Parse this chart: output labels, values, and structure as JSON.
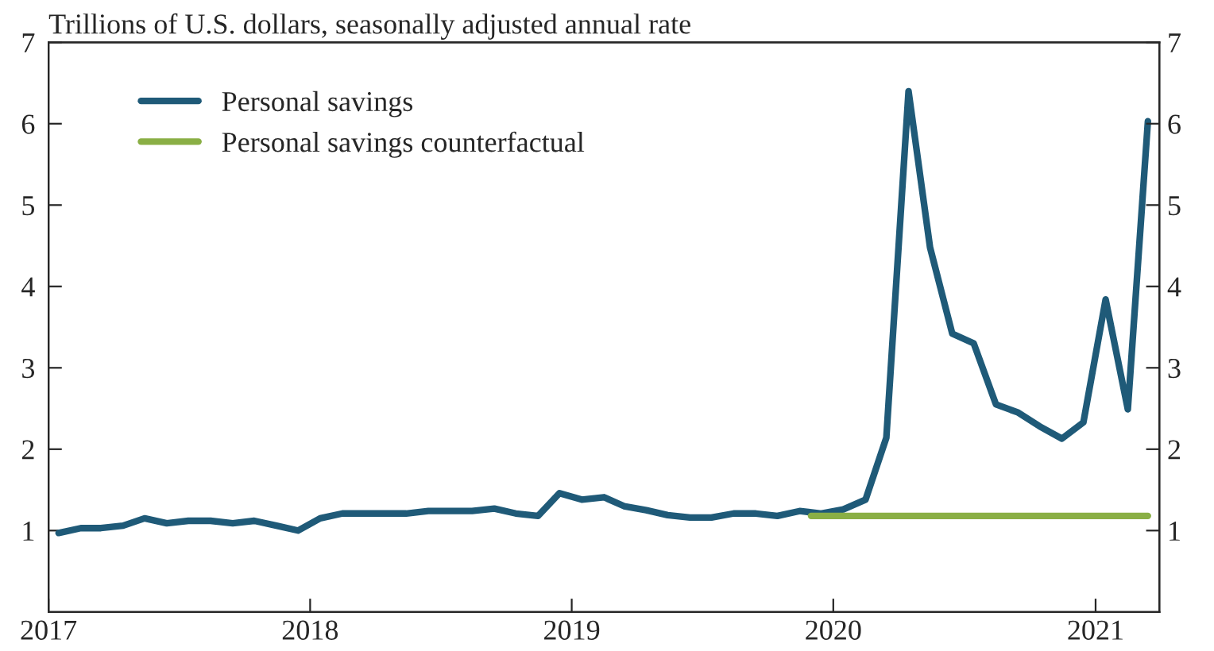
{
  "chart_data": {
    "type": "line",
    "title": "Trillions of U.S. dollars, seasonally adjusted annual rate",
    "x": [
      "2017-01-15",
      "2017-02-15",
      "2017-03-15",
      "2017-04-15",
      "2017-05-15",
      "2017-06-15",
      "2017-07-15",
      "2017-08-15",
      "2017-09-15",
      "2017-10-15",
      "2017-11-15",
      "2017-12-15",
      "2018-01-15",
      "2018-02-15",
      "2018-03-15",
      "2018-04-15",
      "2018-05-15",
      "2018-06-15",
      "2018-07-15",
      "2018-08-15",
      "2018-09-15",
      "2018-10-15",
      "2018-11-15",
      "2018-12-15",
      "2019-01-15",
      "2019-02-15",
      "2019-03-15",
      "2019-04-15",
      "2019-05-15",
      "2019-06-15",
      "2019-07-15",
      "2019-08-15",
      "2019-09-15",
      "2019-10-15",
      "2019-11-15",
      "2019-12-15",
      "2020-01-15",
      "2020-02-15",
      "2020-03-15",
      "2020-04-15",
      "2020-05-15",
      "2020-06-15",
      "2020-07-15",
      "2020-08-15",
      "2020-09-15",
      "2020-10-15",
      "2020-11-15",
      "2020-12-15",
      "2021-01-15",
      "2021-02-15",
      "2021-03-15"
    ],
    "series": [
      {
        "name": "Personal savings",
        "color": "#1f5a78",
        "values": [
          0.97,
          1.03,
          1.03,
          1.06,
          1.15,
          1.09,
          1.12,
          1.12,
          1.09,
          1.12,
          1.06,
          1.0,
          1.15,
          1.21,
          1.21,
          1.21,
          1.21,
          1.24,
          1.24,
          1.24,
          1.27,
          1.21,
          1.18,
          1.46,
          1.38,
          1.41,
          1.3,
          1.25,
          1.19,
          1.16,
          1.16,
          1.21,
          1.21,
          1.18,
          1.24,
          1.21,
          1.26,
          1.38,
          2.14,
          6.4,
          4.48,
          3.42,
          3.3,
          2.55,
          2.45,
          2.28,
          2.13,
          2.33,
          3.84,
          2.49,
          6.03
        ]
      },
      {
        "name": "Personal savings counterfactual",
        "color": "#8aaf45",
        "x": [
          "2019-12-01",
          "2021-03-15"
        ],
        "values": [
          1.18,
          1.18
        ]
      }
    ],
    "xlim": [
      "2017-01-01",
      "2021-03-31"
    ],
    "xticks": [
      {
        "value": "2017-01-01",
        "label": "2017"
      },
      {
        "value": "2018-01-01",
        "label": "2018"
      },
      {
        "value": "2019-01-01",
        "label": "2019"
      },
      {
        "value": "2020-01-01",
        "label": "2020"
      },
      {
        "value": "2021-01-01",
        "label": "2021"
      }
    ],
    "ylim": [
      0,
      7
    ],
    "yticks": [
      1,
      2,
      3,
      4,
      5,
      6,
      7
    ],
    "y2lim": [
      0,
      7
    ],
    "y2ticks": [
      1,
      2,
      3,
      4,
      5,
      6,
      7
    ],
    "legend": "top left",
    "grid": false
  }
}
